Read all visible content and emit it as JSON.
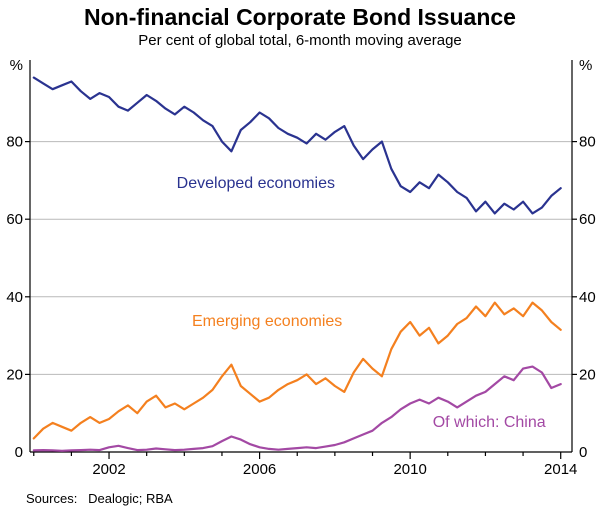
{
  "page": {
    "background": "#ffffff"
  },
  "header": {
    "title": "Non-financial Corporate Bond Issuance",
    "subtitle": "Per cent of global total, 6-month moving average"
  },
  "footer": {
    "sources": "Sources:   Dealogic; RBA"
  },
  "chart_data": {
    "type": "line",
    "title": "Non-financial Corporate Bond Issuance",
    "subtitle": "Per cent of global total, 6-month moving average",
    "unit_left": "%",
    "unit_right": "%",
    "x_range": [
      1999.9,
      2014.3
    ],
    "y_range": [
      0,
      100
    ],
    "y_ticks": [
      0,
      20,
      40,
      60,
      80
    ],
    "x_ticks": [
      2002,
      2006,
      2010,
      2014
    ],
    "x_minor_ticks": [
      2000,
      2001,
      2002,
      2003,
      2004,
      2005,
      2006,
      2007,
      2008,
      2009,
      2010,
      2011,
      2012,
      2013,
      2014
    ],
    "grid": "horizontal",
    "grid_color": "#b9b9b9",
    "axis_color": "#000000",
    "x": [
      2000,
      2000.25,
      2000.5,
      2000.75,
      2001,
      2001.25,
      2001.5,
      2001.75,
      2002,
      2002.25,
      2002.5,
      2002.75,
      2003,
      2003.25,
      2003.5,
      2003.75,
      2004,
      2004.25,
      2004.5,
      2004.75,
      2005,
      2005.25,
      2005.5,
      2005.75,
      2006,
      2006.25,
      2006.5,
      2006.75,
      2007,
      2007.25,
      2007.5,
      2007.75,
      2008,
      2008.25,
      2008.5,
      2008.75,
      2009,
      2009.25,
      2009.5,
      2009.75,
      2010,
      2010.25,
      2010.5,
      2010.75,
      2011,
      2011.25,
      2011.5,
      2011.75,
      2012,
      2012.25,
      2012.5,
      2012.75,
      2013,
      2013.25,
      2013.5,
      2013.75,
      2014
    ],
    "series": [
      {
        "name": "Developed economies",
        "color": "#2a3390",
        "label_pos": [
          2005.9,
          68
        ],
        "values": [
          96.5,
          95,
          93.5,
          94.5,
          95.5,
          93,
          91,
          92.5,
          91.5,
          89,
          88,
          90,
          92,
          90.5,
          88.5,
          87,
          89,
          87.5,
          85.5,
          84,
          80,
          77.5,
          83,
          85,
          87.5,
          86,
          83.5,
          82,
          81,
          79.5,
          82,
          80.5,
          82.5,
          84,
          79,
          75.5,
          78,
          80,
          73,
          68.5,
          67,
          69.5,
          68,
          71.5,
          69.5,
          67,
          65.5,
          62,
          64.5,
          61.5,
          64,
          62.5,
          64.5,
          61.5,
          63,
          66,
          68
        ]
      },
      {
        "name": "Emerging economies",
        "color": "#f4801f",
        "label_pos": [
          2006.2,
          32.5
        ],
        "values": [
          3.5,
          6,
          7.5,
          6.5,
          5.5,
          7.5,
          9,
          7.5,
          8.5,
          10.5,
          12,
          10,
          13,
          14.5,
          11.5,
          12.5,
          11,
          12.5,
          14,
          16,
          19.5,
          22.5,
          17,
          15,
          13,
          14,
          16,
          17.5,
          18.5,
          20,
          17.5,
          19,
          17,
          15.5,
          20.5,
          24,
          21.5,
          19.5,
          26.5,
          31,
          33.5,
          30,
          32,
          28,
          30,
          33,
          34.5,
          37.5,
          35,
          38.5,
          35.5,
          37,
          35,
          38.5,
          36.5,
          33.5,
          31.5
        ]
      },
      {
        "name": "Of which: China",
        "color": "#a349a4",
        "label_pos": [
          2012.1,
          6.5
        ],
        "values": [
          0.4,
          0.5,
          0.4,
          0.3,
          0.4,
          0.5,
          0.6,
          0.5,
          1.2,
          1.6,
          1.0,
          0.5,
          0.6,
          0.9,
          0.7,
          0.5,
          0.6,
          0.8,
          1.0,
          1.5,
          2.8,
          4.0,
          3.2,
          2.0,
          1.2,
          0.8,
          0.6,
          0.8,
          1.0,
          1.2,
          1.0,
          1.4,
          1.8,
          2.5,
          3.5,
          4.5,
          5.5,
          7.5,
          9.0,
          11.0,
          12.5,
          13.5,
          12.5,
          14.0,
          13.0,
          11.5,
          13.0,
          14.5,
          15.5,
          17.5,
          19.5,
          18.5,
          21.5,
          22.0,
          20.5,
          16.5,
          17.5
        ]
      }
    ],
    "sources": "Sources:   Dealogic; RBA"
  }
}
